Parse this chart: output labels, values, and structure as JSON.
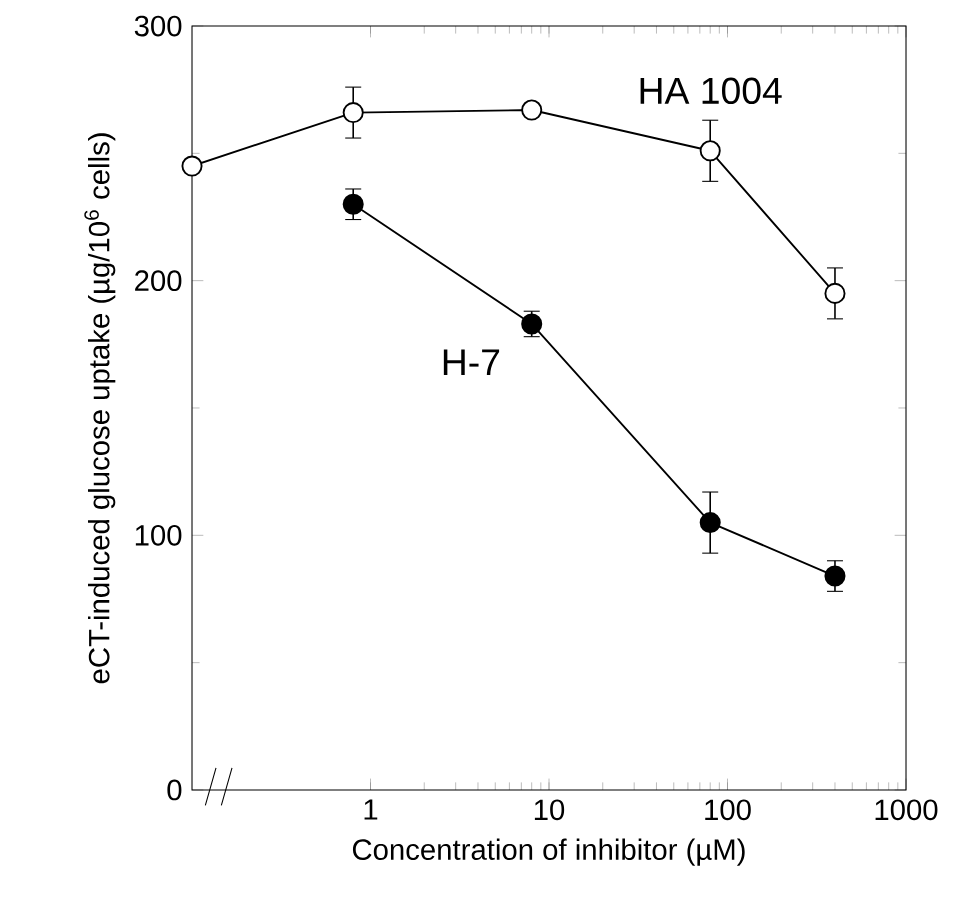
{
  "chart_data": {
    "type": "line",
    "xlabel": "Concentration of inhibitor (µM)",
    "ylabel": "eCT-induced glucose uptake (µg/10$^{6}$ cells)",
    "log": "x",
    "xlim": [
      0.1,
      1000
    ],
    "xticks": [
      1,
      10,
      100,
      1000
    ],
    "ylim": [
      0,
      300
    ],
    "yticks": [
      0,
      100,
      200,
      300
    ],
    "grid": false,
    "marker": "circle",
    "line_style": "solid",
    "series": [
      {
        "name": "HA 1004",
        "color": "#000000",
        "x": [
          0.1,
          0.8,
          8,
          80,
          400
        ],
        "values": [
          245,
          266,
          267,
          251,
          195
        ],
        "errors": [
          null,
          10,
          null,
          12,
          10
        ]
      },
      {
        "name": "H-7",
        "color": "#000000",
        "x": [
          0.8,
          8,
          80,
          400
        ],
        "values": [
          230,
          183,
          105,
          84
        ],
        "errors": [
          6,
          5,
          12,
          6
        ]
      }
    ]
  }
}
